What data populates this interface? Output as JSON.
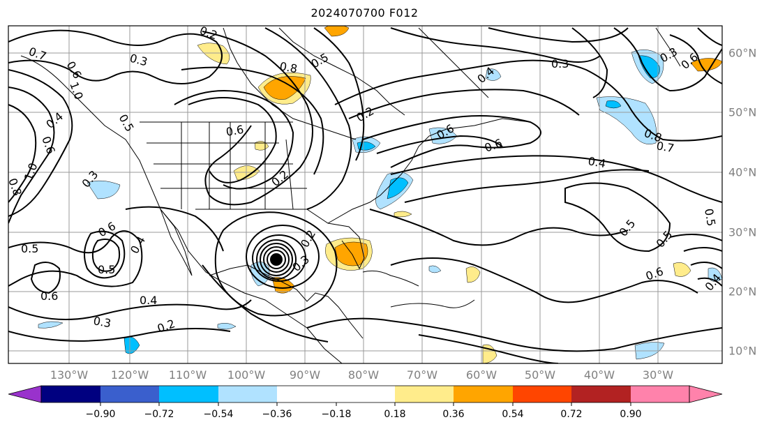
{
  "title": "2024070700 F012",
  "lon_labels": [
    "130°W",
    "120°W",
    "110°W",
    "100°W",
    "90°W",
    "80°W",
    "70°W",
    "60°W",
    "50°W",
    "40°W",
    "30°W"
  ],
  "lat_labels": [
    "60°N",
    "50°N",
    "40°N",
    "30°N",
    "20°N",
    "10°N"
  ],
  "contour_labels": [
    "0.7",
    "0.6",
    "0.3",
    "1.0",
    "0.4",
    "0.2",
    "0.5",
    "0.3",
    "0.6",
    "0.8",
    "1.0",
    "0.5",
    "0.6",
    "0.5",
    "0.3",
    "0.2",
    "0.6",
    "0.4",
    "0.6",
    "0.2",
    "0.2",
    "0.8",
    "0.4",
    "0.5",
    "0.3",
    "0.6",
    "0.4",
    "0.7",
    "0.8",
    "0.3",
    "0.6",
    "0.5",
    "0.5",
    "0.6",
    "0.5",
    "0.4",
    "0.3",
    "0.2",
    "0.6",
    "0.4"
  ],
  "colorbar": {
    "ticks": [
      "−0.90",
      "−0.72",
      "−0.54",
      "−0.36",
      "−0.18",
      "0.18",
      "0.36",
      "0.54",
      "0.72",
      "0.90"
    ],
    "colors": [
      "#9932cc",
      "#000080",
      "#3a5fcd",
      "#00bfff",
      "#b0e2ff",
      "#ffffff",
      "#ffec8b",
      "#ffa500",
      "#ff4500",
      "#b22222",
      "#ff82ab"
    ]
  },
  "shading": {
    "pos1": "#ffec8b",
    "pos2": "#ffa500",
    "neg1": "#b0e2ff",
    "neg2": "#00bfff"
  }
}
